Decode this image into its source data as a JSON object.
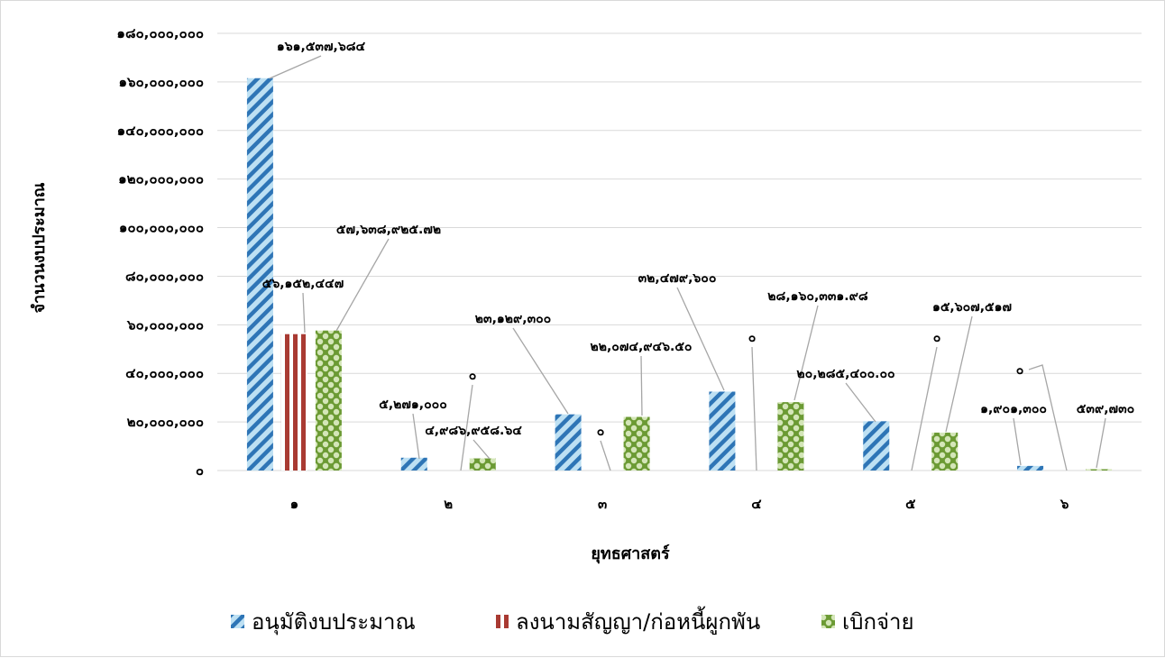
{
  "chart_data": {
    "type": "bar",
    "categories": [
      "๑",
      "๒",
      "๓",
      "๔",
      "๕",
      "๖"
    ],
    "series": [
      {
        "name": "อนุมัติงบประมาณ",
        "values": [
          161537684,
          5271000,
          23129300,
          32479600,
          20285400,
          1901300
        ]
      },
      {
        "name": "ลงนามสัญญา/ก่อหนี้ผูกพัน",
        "values": [
          56152447,
          0,
          0,
          0,
          0,
          0
        ]
      },
      {
        "name": "เบิกจ่าย",
        "values": [
          57638925.72,
          4986958.64,
          22074946.5,
          28160331.98,
          15607517,
          539730
        ]
      }
    ],
    "data_labels": [
      [
        "๑๖๑,๕๓๗,๖๘๔",
        "๕,๒๗๑,๐๐๐",
        "๒๓,๑๒๙,๓๐๐",
        "๓๒,๔๗๙,๖๐๐",
        "๒๐,๒๘๕,๔๐๐.๐๐",
        "๑,๙๐๑,๓๐๐"
      ],
      [
        "๕๖,๑๕๒,๔๔๗",
        "๐",
        "๐",
        "๐",
        "๐",
        "๐"
      ],
      [
        "๕๗,๖๓๘,๙๒๕.๗๒",
        "๔,๙๘๖,๙๕๘.๖๔",
        "๒๒,๐๗๔,๙๔๖.๕๐",
        "๒๘,๑๖๐,๓๓๑.๙๘",
        "๑๕,๖๐๗,๕๑๗",
        "๕๓๙,๗๓๐"
      ]
    ],
    "ytick_labels": [
      "๐",
      "๒๐,๐๐๐,๐๐๐",
      "๔๐,๐๐๐,๐๐๐",
      "๖๐,๐๐๐,๐๐๐",
      "๘๐,๐๐๐,๐๐๐",
      "๑๐๐,๐๐๐,๐๐๐",
      "๑๒๐,๐๐๐,๐๐๐",
      "๑๔๐,๐๐๐,๐๐๐",
      "๑๖๐,๐๐๐,๐๐๐",
      "๑๘๐,๐๐๐,๐๐๐"
    ],
    "ylim": [
      0,
      180000000
    ],
    "xlabel": "ยุทธศาสตร์",
    "ylabel": "จำนวนงบประมาณ",
    "grid": true,
    "legend_position": "bottom",
    "colors": {
      "approved_bg": "#bde0f3",
      "approved_fg": "#2e75b6",
      "contract_bg": "#ffffff",
      "contract_fg": "#a93a32",
      "disbursed_bg": "#d4e6b8",
      "disbursed_fg": "#6b9a33",
      "grid": "#d9d9d9",
      "leader": "#a6a6a6"
    }
  }
}
